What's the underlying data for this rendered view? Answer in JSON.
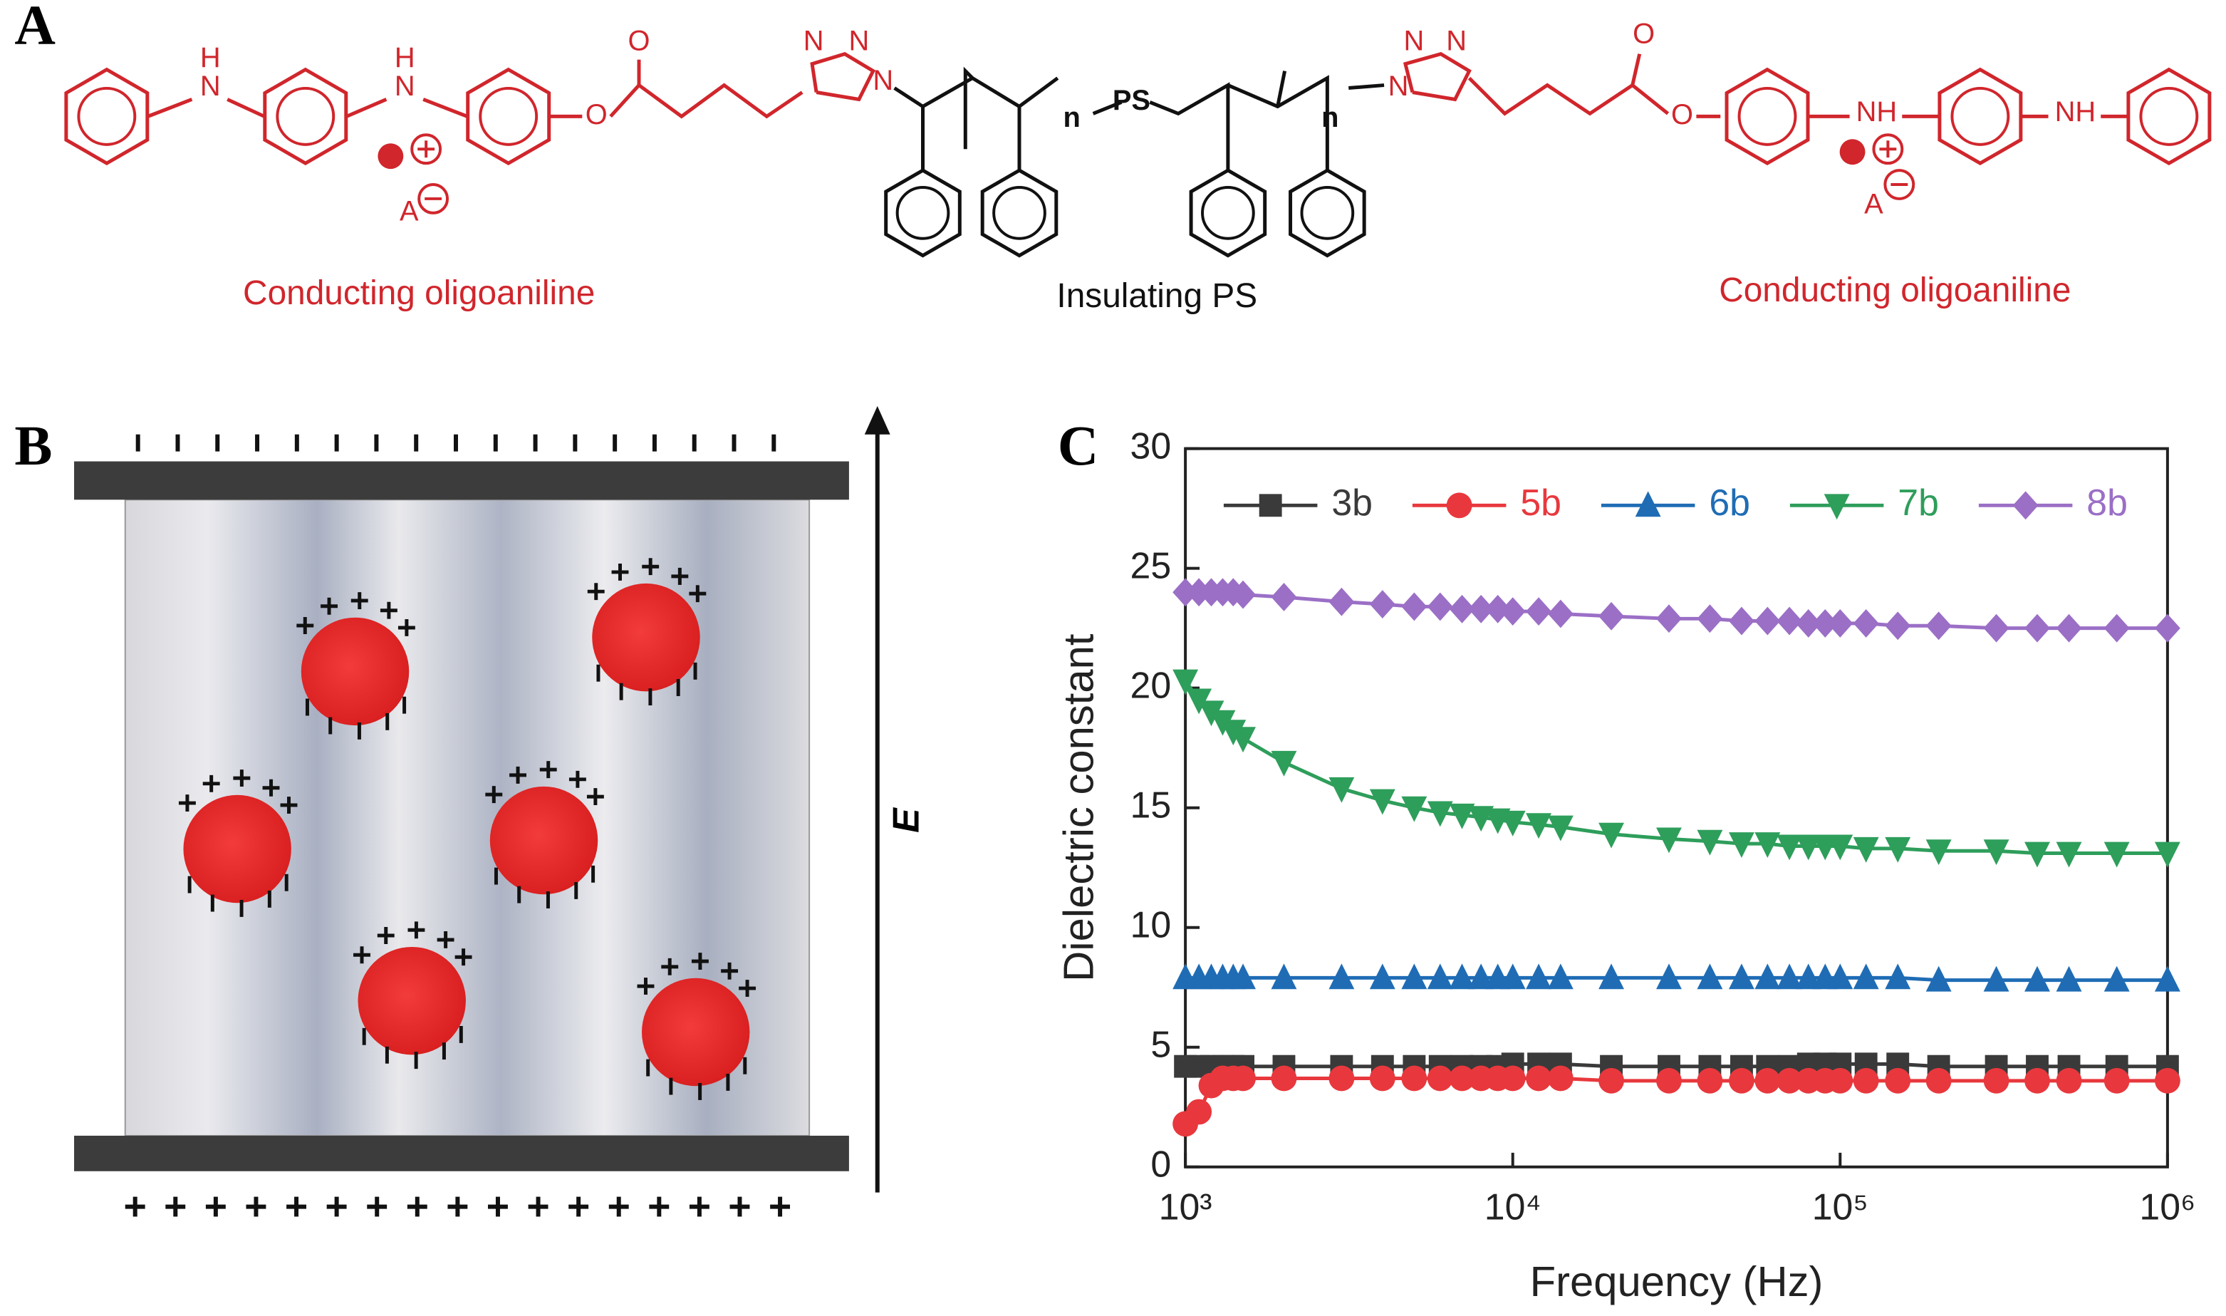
{
  "panels": {
    "a": "A",
    "b": "B",
    "c": "C"
  },
  "structure": {
    "atoms": [
      "H",
      "N",
      "H",
      "N",
      "O",
      "O",
      "N",
      "N",
      "N",
      "n",
      "PS",
      "n",
      "N",
      "N",
      "N",
      "O",
      "O",
      "NH",
      "NH",
      "A",
      "A"
    ],
    "captions": [
      "Conducting oligoaniline",
      "Insulating PS",
      "Conducting oligoaniline"
    ]
  },
  "schematic": {
    "field_label": "E"
  },
  "chart_data": {
    "type": "line",
    "xlabel": "Frequency (Hz)",
    "ylabel": "Dielectric constant",
    "xscale": "log",
    "x": [
      1000,
      1100,
      1200,
      1300,
      1400,
      1500,
      2000,
      3000,
      4000,
      5000,
      6000,
      7000,
      8000,
      9000,
      10000,
      12000,
      14000,
      20000,
      30000,
      40000,
      50000,
      60000,
      70000,
      80000,
      90000,
      100000,
      120000,
      150000,
      200000,
      300000,
      400000,
      500000,
      700000,
      1000000
    ],
    "xlim": [
      1000,
      1000000
    ],
    "xticks": [
      {
        "value": 1000,
        "label": "10³"
      },
      {
        "value": 10000,
        "label": "10⁴"
      },
      {
        "value": 100000,
        "label": "10⁵"
      },
      {
        "value": 1000000,
        "label": "10⁶"
      }
    ],
    "ylim": [
      0,
      30
    ],
    "yticks": [
      0,
      5,
      10,
      15,
      20,
      25,
      30
    ],
    "legend": "top",
    "series": [
      {
        "name": "3b",
        "color": "#3a3a3a",
        "marker": "square",
        "values": [
          4.2,
          4.2,
          4.2,
          4.2,
          4.2,
          4.2,
          4.2,
          4.2,
          4.2,
          4.2,
          4.2,
          4.2,
          4.2,
          4.2,
          4.3,
          4.3,
          4.3,
          4.2,
          4.2,
          4.2,
          4.2,
          4.2,
          4.2,
          4.3,
          4.3,
          4.3,
          4.3,
          4.3,
          4.2,
          4.2,
          4.2,
          4.2,
          4.2,
          4.2
        ]
      },
      {
        "name": "5b",
        "color": "#e8383d",
        "marker": "circle",
        "values": [
          1.8,
          2.3,
          3.4,
          3.7,
          3.7,
          3.7,
          3.7,
          3.7,
          3.7,
          3.7,
          3.7,
          3.7,
          3.7,
          3.7,
          3.7,
          3.7,
          3.7,
          3.6,
          3.6,
          3.6,
          3.6,
          3.6,
          3.6,
          3.6,
          3.6,
          3.6,
          3.6,
          3.6,
          3.6,
          3.6,
          3.6,
          3.6,
          3.6,
          3.6
        ]
      },
      {
        "name": "6b",
        "color": "#1f6cb5",
        "marker": "triangle-up",
        "values": [
          7.9,
          7.9,
          7.9,
          7.9,
          7.9,
          7.9,
          7.9,
          7.9,
          7.9,
          7.9,
          7.9,
          7.9,
          7.9,
          7.9,
          7.9,
          7.9,
          7.9,
          7.9,
          7.9,
          7.9,
          7.9,
          7.9,
          7.9,
          7.9,
          7.9,
          7.9,
          7.9,
          7.9,
          7.8,
          7.8,
          7.8,
          7.8,
          7.8,
          7.8
        ]
      },
      {
        "name": "7b",
        "color": "#2e9e5b",
        "marker": "triangle-down",
        "values": [
          20.3,
          19.5,
          19.0,
          18.6,
          18.2,
          17.9,
          16.9,
          15.8,
          15.3,
          15.0,
          14.8,
          14.7,
          14.6,
          14.5,
          14.4,
          14.3,
          14.2,
          13.9,
          13.7,
          13.6,
          13.5,
          13.5,
          13.4,
          13.4,
          13.4,
          13.4,
          13.3,
          13.3,
          13.2,
          13.2,
          13.1,
          13.1,
          13.1,
          13.1
        ]
      },
      {
        "name": "8b",
        "color": "#9b6fc6",
        "marker": "diamond",
        "values": [
          24.0,
          24.0,
          24.0,
          24.0,
          24.0,
          23.9,
          23.8,
          23.6,
          23.5,
          23.4,
          23.4,
          23.3,
          23.3,
          23.3,
          23.2,
          23.2,
          23.1,
          23.0,
          22.9,
          22.9,
          22.8,
          22.8,
          22.8,
          22.7,
          22.7,
          22.7,
          22.7,
          22.6,
          22.6,
          22.5,
          22.5,
          22.5,
          22.5,
          22.5
        ]
      }
    ]
  }
}
